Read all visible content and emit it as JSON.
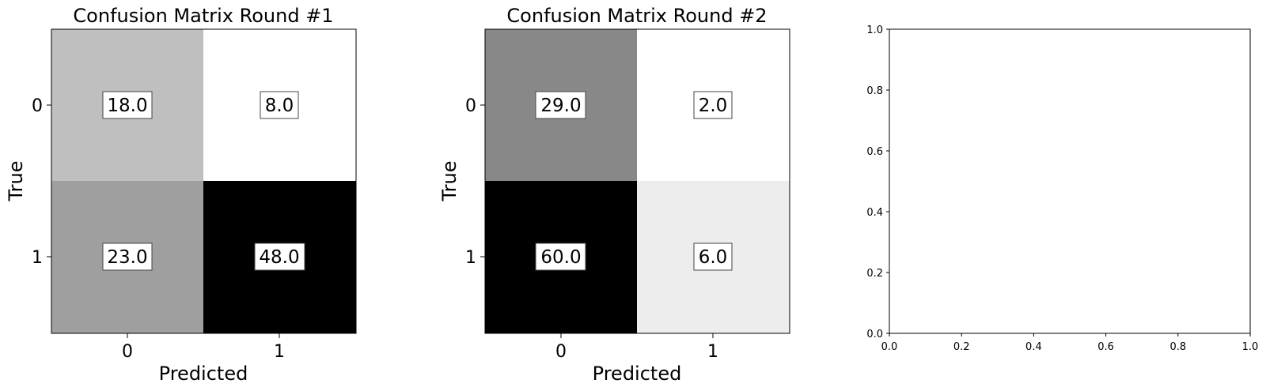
{
  "chart_data": [
    {
      "type": "heatmap",
      "title": "Confusion Matrix Round #1",
      "xlabel": "Predicted",
      "ylabel": "True",
      "x_ticks": [
        "0",
        "1"
      ],
      "y_ticks": [
        "0",
        "1"
      ],
      "colormap": "gray_r",
      "matrix": [
        [
          18.0,
          8.0
        ],
        [
          23.0,
          48.0
        ]
      ],
      "cell_labels": [
        [
          "18.0",
          "8.0"
        ],
        [
          "23.0",
          "48.0"
        ]
      ]
    },
    {
      "type": "heatmap",
      "title": "Confusion Matrix Round #2",
      "xlabel": "Predicted",
      "ylabel": "True",
      "x_ticks": [
        "0",
        "1"
      ],
      "y_ticks": [
        "0",
        "1"
      ],
      "colormap": "gray_r",
      "matrix": [
        [
          29.0,
          2.0
        ],
        [
          60.0,
          6.0
        ]
      ],
      "cell_labels": [
        [
          "29.0",
          "2.0"
        ],
        [
          "60.0",
          "6.0"
        ]
      ]
    },
    {
      "type": "scatter",
      "title": "",
      "xlabel": "",
      "ylabel": "",
      "xlim": [
        0.0,
        1.0
      ],
      "ylim": [
        0.0,
        1.0
      ],
      "x_ticks": [
        "0.0",
        "0.2",
        "0.4",
        "0.6",
        "0.8",
        "1.0"
      ],
      "y_ticks": [
        "0.0",
        "0.2",
        "0.4",
        "0.6",
        "0.8",
        "1.0"
      ],
      "series": []
    }
  ]
}
